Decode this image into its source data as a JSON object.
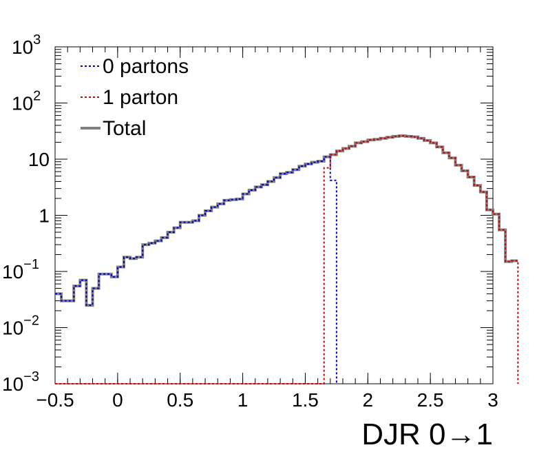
{
  "chart_data": {
    "type": "line",
    "xlabel": "DJR 0→1",
    "ylabel": "",
    "title": "",
    "xlim": [
      -0.5,
      3
    ],
    "ylim": [
      0.001,
      1000
    ],
    "yscale": "log",
    "grid": false,
    "legend_position": "top-left",
    "x_ticks": [
      -0.5,
      0,
      0.5,
      1,
      1.5,
      2,
      2.5,
      3
    ],
    "x_tick_labels": [
      "−0.5",
      "0",
      "0.5",
      "1",
      "1.5",
      "2",
      "2.5",
      "3"
    ],
    "y_ticks": [
      0.001,
      0.01,
      0.1,
      1,
      10,
      100,
      1000
    ],
    "y_tick_labels": [
      {
        "base": "10",
        "exp": "−3"
      },
      {
        "base": "10",
        "exp": "−2"
      },
      {
        "base": "10",
        "exp": "−1"
      },
      {
        "base": "1",
        "exp": ""
      },
      {
        "base": "10",
        "exp": ""
      },
      {
        "base": "10",
        "exp": "2"
      },
      {
        "base": "10",
        "exp": "3"
      }
    ],
    "bin_width": 0.05,
    "x_bin_start": -0.5,
    "series": [
      {
        "name": "Total",
        "color": "#808080",
        "style": "solid",
        "values": [
          0.04,
          0.03,
          0.03,
          0.055,
          0.07,
          0.025,
          0.05,
          0.09,
          0.09,
          0.08,
          0.12,
          0.18,
          0.17,
          0.18,
          0.3,
          0.32,
          0.35,
          0.4,
          0.5,
          0.6,
          0.75,
          0.75,
          0.8,
          1.0,
          1.2,
          1.4,
          1.6,
          1.85,
          1.9,
          1.95,
          2.4,
          2.8,
          3.2,
          3.5,
          4.0,
          4.7,
          5.5,
          5.8,
          6.5,
          7.5,
          8.2,
          8.8,
          9.2,
          11.0,
          12.0,
          14.0,
          15.5,
          17.0,
          19.5,
          20.5,
          22.0,
          22.5,
          23.5,
          24.5,
          25.5,
          26.0,
          25.5,
          25.0,
          23.5,
          21.5,
          19.5,
          16.5,
          13.0,
          10.5,
          7.8,
          6.2,
          4.8,
          3.4,
          2.6,
          1.25,
          1.05,
          0.55,
          0.15,
          0.155
        ]
      },
      {
        "name": "0 partons",
        "color": "#0000cc",
        "style": "dotted",
        "values": [
          0.04,
          0.03,
          0.03,
          0.055,
          0.07,
          0.025,
          0.05,
          0.09,
          0.09,
          0.08,
          0.12,
          0.18,
          0.17,
          0.18,
          0.3,
          0.32,
          0.35,
          0.4,
          0.5,
          0.6,
          0.75,
          0.75,
          0.8,
          1.0,
          1.2,
          1.4,
          1.6,
          1.85,
          1.9,
          1.95,
          2.4,
          2.8,
          3.2,
          3.5,
          4.0,
          4.7,
          5.5,
          5.8,
          6.5,
          7.5,
          8.2,
          8.8,
          9.2,
          11.0,
          4.2
        ]
      },
      {
        "name": "1 parton",
        "color": "#cc0000",
        "style": "dotted",
        "values": [
          0.0,
          0.0,
          0.0,
          0.0,
          0.0,
          0.0,
          0.0,
          0.0,
          0.0,
          0.0,
          0.0,
          0.0,
          0.0,
          0.0,
          0.0,
          0.0,
          0.0,
          0.0,
          0.0,
          0.0,
          0.0,
          0.0,
          0.0,
          0.0,
          0.0,
          0.0,
          0.0,
          0.0,
          0.0,
          0.0,
          0.0,
          0.0,
          0.0,
          0.0,
          0.0,
          0.0,
          0.0,
          0.0,
          0.0,
          0.0,
          0.0,
          0.0,
          0.0,
          7.0,
          12.0,
          14.0,
          15.5,
          17.0,
          19.5,
          20.5,
          22.0,
          22.5,
          23.5,
          24.5,
          25.5,
          26.0,
          25.5,
          25.0,
          23.5,
          21.5,
          19.5,
          16.5,
          13.0,
          10.5,
          7.8,
          6.2,
          4.8,
          3.4,
          2.6,
          1.25,
          1.05,
          0.55,
          0.15,
          0.155
        ]
      }
    ],
    "legend": [
      {
        "label": "0 partons",
        "color": "#0000cc",
        "style": "dotted"
      },
      {
        "label": "1 parton",
        "color": "#cc0000",
        "style": "dotted"
      },
      {
        "label": "Total",
        "color": "#808080",
        "style": "solid"
      }
    ]
  }
}
